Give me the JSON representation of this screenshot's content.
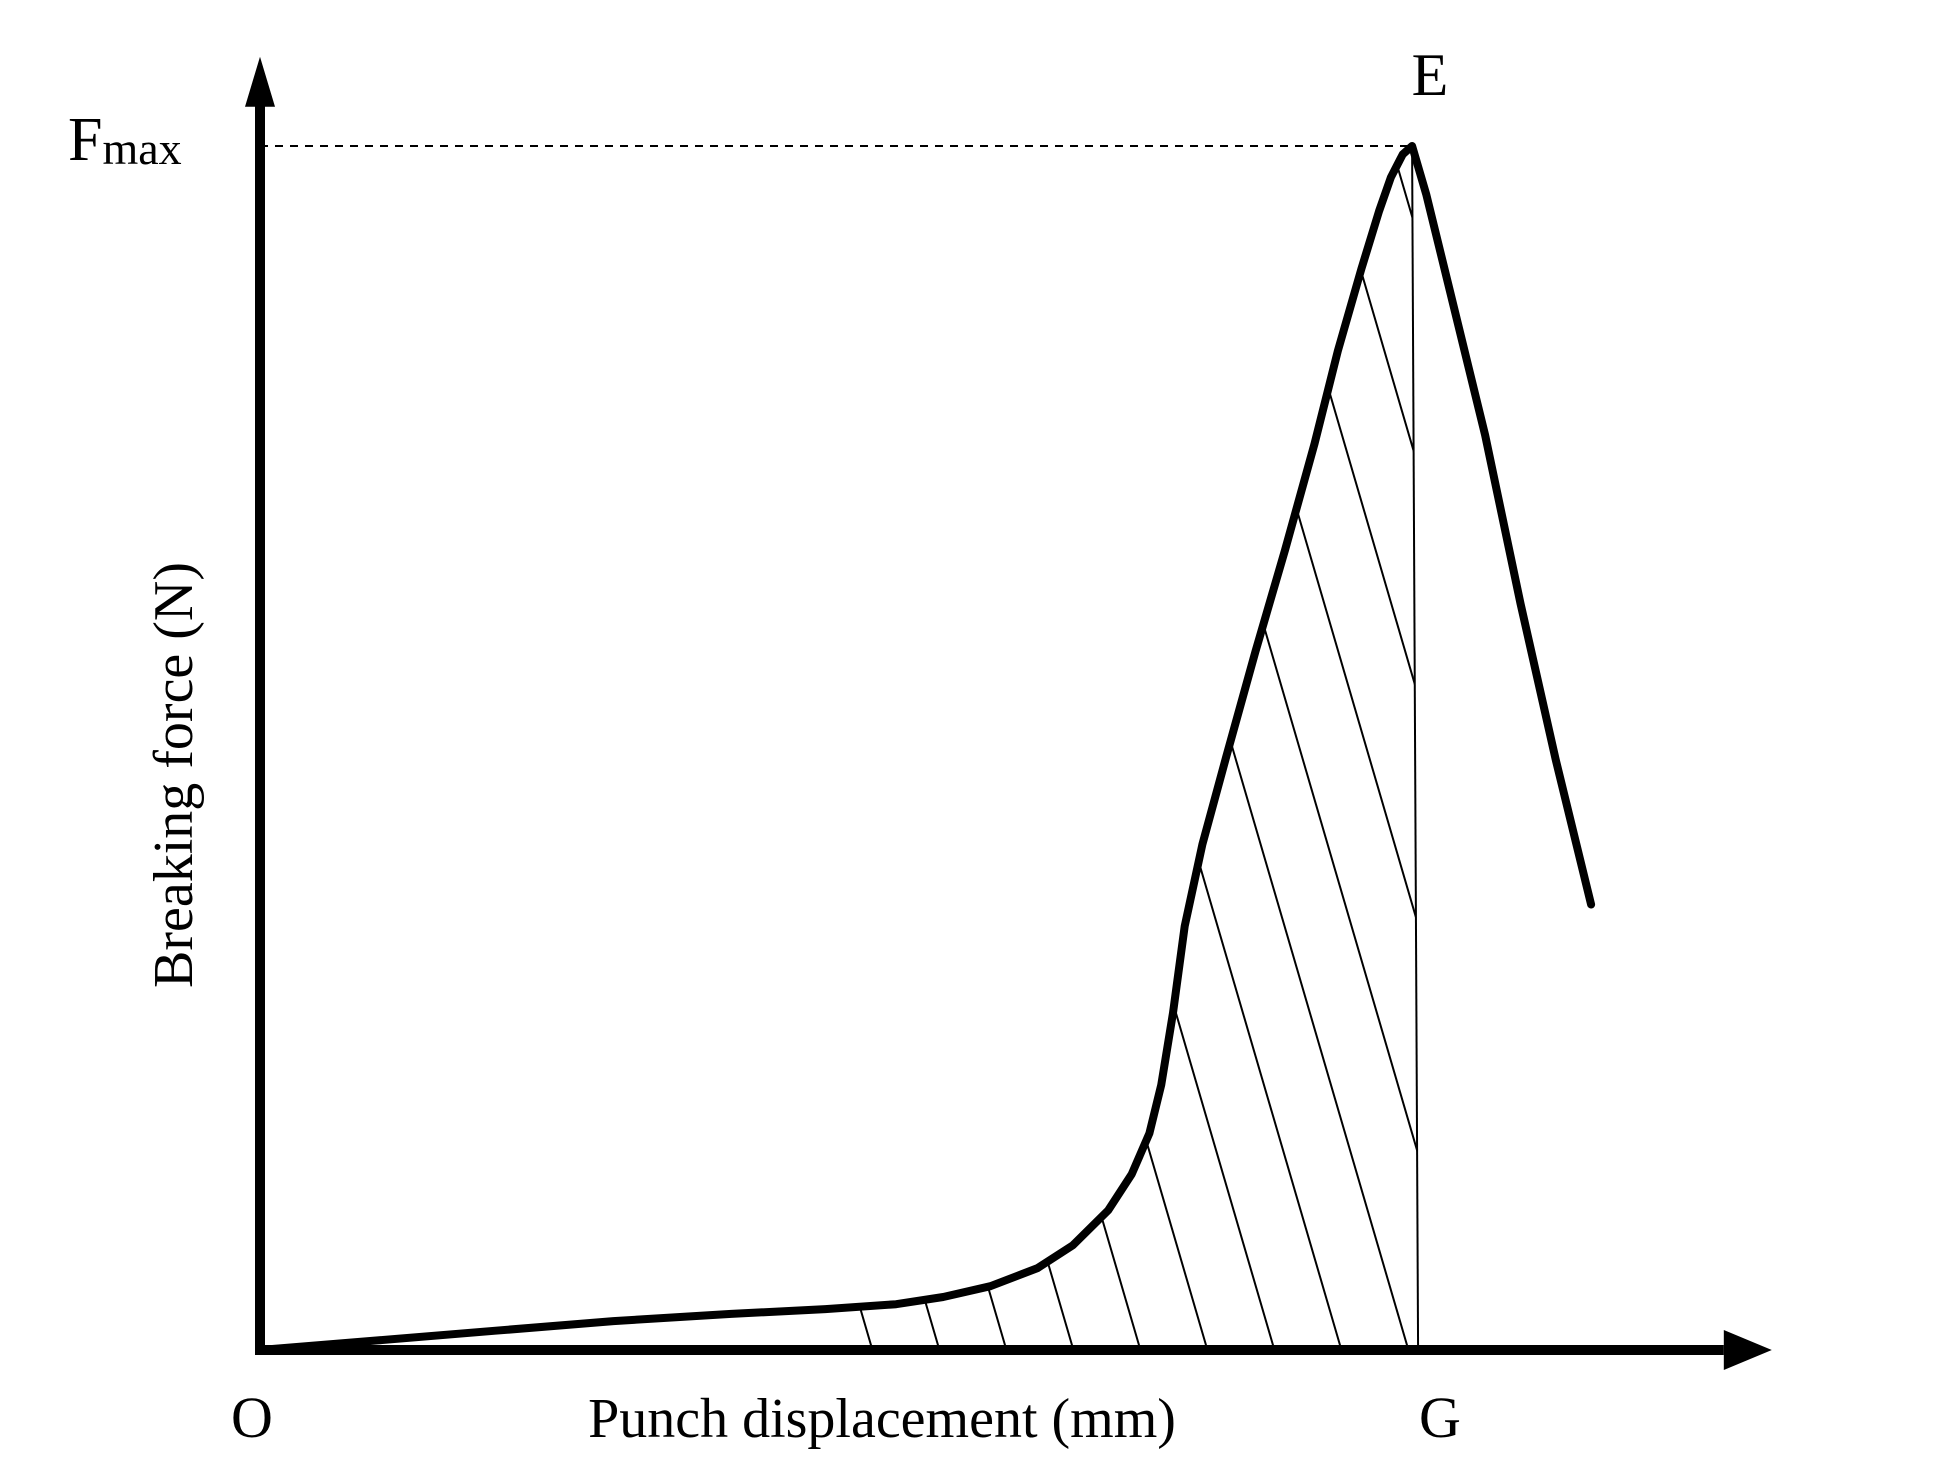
{
  "chart_data": {
    "type": "line",
    "title": "",
    "xlabel": "Punch displacement (mm)",
    "ylabel": "Breaking force (N)",
    "origin_label": "O",
    "x_point_label": "G",
    "peak_label": "E",
    "y_max_label_main": "F",
    "y_max_label_sub": "max",
    "xlim": [
      0,
      1.1
    ],
    "ylim": [
      0,
      1.07
    ],
    "grid": false,
    "series": [
      {
        "curve": [
          [
            0.0,
            0.0
          ],
          [
            0.1,
            0.008
          ],
          [
            0.2,
            0.016
          ],
          [
            0.3,
            0.024
          ],
          [
            0.4,
            0.03
          ],
          [
            0.48,
            0.034
          ],
          [
            0.54,
            0.038
          ],
          [
            0.58,
            0.044
          ],
          [
            0.62,
            0.053
          ],
          [
            0.66,
            0.068
          ],
          [
            0.69,
            0.087
          ],
          [
            0.72,
            0.116
          ],
          [
            0.74,
            0.146
          ],
          [
            0.755,
            0.18
          ],
          [
            0.765,
            0.22
          ],
          [
            0.775,
            0.28
          ],
          [
            0.785,
            0.352
          ],
          [
            0.8,
            0.42
          ],
          [
            0.82,
            0.492
          ],
          [
            0.845,
            0.58
          ],
          [
            0.87,
            0.664
          ],
          [
            0.895,
            0.752
          ],
          [
            0.915,
            0.83
          ],
          [
            0.935,
            0.898
          ],
          [
            0.95,
            0.946
          ],
          [
            0.96,
            0.974
          ],
          [
            0.97,
            0.993
          ],
          [
            0.978,
            1.0
          ],
          [
            0.99,
            0.96
          ],
          [
            1.01,
            0.88
          ],
          [
            1.04,
            0.76
          ],
          [
            1.07,
            0.62
          ],
          [
            1.1,
            0.49
          ],
          [
            1.13,
            0.37
          ]
        ]
      }
    ],
    "peak": {
      "x": 0.978,
      "y": 1.0
    },
    "shaded_region": {
      "x_from": 0.48,
      "x_to": 0.978,
      "pattern": "diagonal-hatch"
    },
    "colors": {
      "line": "#000000",
      "background": "#ffffff"
    }
  }
}
